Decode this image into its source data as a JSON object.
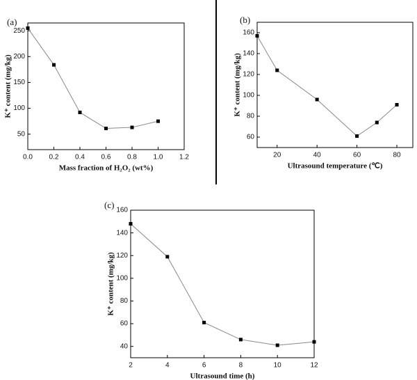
{
  "chart_data": [
    {
      "type": "line",
      "label": "(a)",
      "xlabel": "Mass fraction of H₂O₂ (wt%)",
      "ylabel": "K⁺ content (mg/kg)",
      "x": [
        0,
        0.2,
        0.4,
        0.6,
        0.8,
        1.0
      ],
      "values": [
        255,
        184,
        92,
        61,
        63,
        75
      ],
      "color": "#888888",
      "marker_color": "#000000",
      "xlim": [
        0,
        1.2
      ],
      "xticks": [
        {
          "value": 0,
          "label": "0.0"
        },
        0.2,
        0.4,
        0.6,
        0.8,
        {
          "value": 1,
          "label": "1.0"
        },
        1.2
      ],
      "ylim": [
        20,
        265
      ],
      "yticks": [
        50,
        100,
        150,
        200,
        250
      ]
    },
    {
      "type": "line",
      "label": "(b)",
      "xlabel": "Ultrasound temperature (℃)",
      "ylabel": "K⁺ content (mg/kg)",
      "x": [
        10,
        20,
        40,
        60,
        70,
        80
      ],
      "values": [
        157,
        124,
        96,
        61,
        74,
        91
      ],
      "color": "#888888",
      "marker_color": "#000000",
      "xlim": [
        10,
        88
      ],
      "xticks": [
        20,
        40,
        60,
        80
      ],
      "ylim": [
        50,
        170
      ],
      "yticks": [
        60,
        80,
        100,
        120,
        140,
        160
      ]
    },
    {
      "type": "line",
      "label": "(c)",
      "xlabel": "Ultrasound time (h)",
      "ylabel": "K⁺ content (mg/kg)",
      "x": [
        2,
        4,
        6,
        8,
        10,
        12
      ],
      "values": [
        148,
        119,
        61,
        46,
        41,
        44
      ],
      "color": "#888888",
      "marker_color": "#000000",
      "xlim": [
        2,
        12
      ],
      "xticks": [
        2,
        4,
        6,
        8,
        10,
        12
      ],
      "ylim": [
        30,
        160
      ],
      "yticks": [
        40,
        60,
        80,
        100,
        120,
        140,
        160
      ]
    }
  ]
}
